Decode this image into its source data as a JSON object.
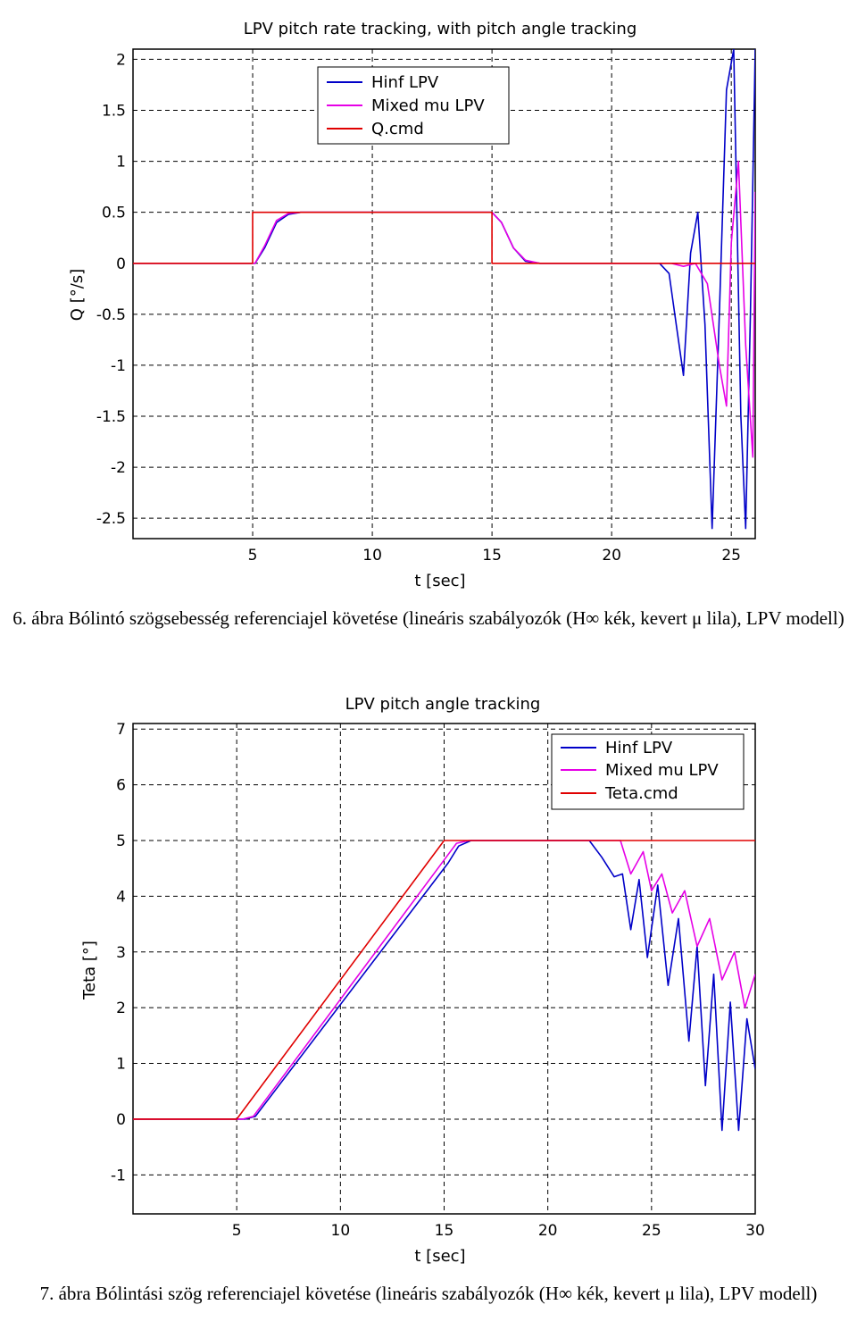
{
  "charts": [
    {
      "type": "line",
      "title": "LPV pitch rate tracking, with pitch angle tracking",
      "xlabel": "t [sec]",
      "ylabel": "Q [°/s]",
      "xlim": [
        0,
        26
      ],
      "ylim": [
        -2.7,
        2.1
      ],
      "xticks": [
        "5",
        "10",
        "15",
        "20",
        "25"
      ],
      "yticks": [
        "2",
        "1.5",
        "1",
        "0.5",
        "0",
        "-0.5",
        "-1",
        "-1.5",
        "-2",
        "-2.5"
      ],
      "grid": true,
      "legend": {
        "position": "top-left",
        "entries": [
          "Hinf LPV",
          "Mixed mu LPV",
          "Q.cmd"
        ]
      },
      "colors": {
        "hinf": "#0000c8",
        "mixed": "#e600e6",
        "cmd": "#e00000"
      },
      "series": [
        {
          "name": "Hinf LPV",
          "color": "#0000c8",
          "x": [
            0,
            5.1,
            5.5,
            6.0,
            6.5,
            7.0,
            15.0,
            15.4,
            15.9,
            16.4,
            17.0,
            20.0,
            22.0,
            22.4,
            22.7,
            23.0,
            23.3,
            23.6,
            23.9,
            24.2,
            24.5,
            24.8,
            25.1,
            25.4,
            25.6,
            25.8,
            26.0
          ],
          "y": [
            0,
            0,
            0.15,
            0.4,
            0.48,
            0.5,
            0.5,
            0.4,
            0.15,
            0.02,
            0,
            0,
            0,
            -0.1,
            -0.6,
            -1.1,
            0.1,
            0.5,
            -0.6,
            -2.6,
            -0.5,
            1.7,
            2.1,
            -1.5,
            -2.6,
            -0.5,
            2.1
          ]
        },
        {
          "name": "Mixed mu LPV",
          "color": "#e600e6",
          "x": [
            0,
            5.1,
            5.5,
            6.0,
            6.5,
            7.0,
            15.0,
            15.4,
            15.9,
            16.4,
            17.0,
            22.5,
            23.0,
            23.5,
            24.0,
            24.5,
            24.8,
            25.0,
            25.3,
            25.6,
            25.9,
            26.0
          ],
          "y": [
            0,
            0,
            0.17,
            0.42,
            0.49,
            0.5,
            0.5,
            0.4,
            0.15,
            0.03,
            0,
            0,
            -0.03,
            0.0,
            -0.2,
            -1.0,
            -1.4,
            0.2,
            1.0,
            -0.8,
            -1.9,
            0.7
          ]
        },
        {
          "name": "Q.cmd",
          "color": "#e00000",
          "x": [
            0,
            5,
            5,
            15,
            15,
            26
          ],
          "y": [
            0,
            0,
            0.5,
            0.5,
            0,
            0
          ]
        }
      ]
    },
    {
      "type": "line",
      "title": "LPV pitch angle tracking",
      "xlabel": "t [sec]",
      "ylabel": "Teta [°]",
      "xlim": [
        0,
        30
      ],
      "ylim": [
        -1.7,
        7.1
      ],
      "xticks": [
        "5",
        "10",
        "15",
        "20",
        "25",
        "30"
      ],
      "yticks": [
        "7",
        "6",
        "5",
        "4",
        "3",
        "2",
        "1",
        "0",
        "-1"
      ],
      "grid": true,
      "legend": {
        "position": "top-right",
        "entries": [
          "Hinf LPV",
          "Mixed mu LPV",
          "Teta.cmd"
        ]
      },
      "colors": {
        "hinf": "#0000c8",
        "mixed": "#e600e6",
        "cmd": "#e00000"
      },
      "series": [
        {
          "name": "Hinf LPV",
          "color": "#0000c8",
          "x": [
            0,
            5.4,
            5.9,
            15.2,
            15.7,
            16.3,
            22.0,
            22.6,
            23.2,
            23.6,
            24.0,
            24.4,
            24.8,
            25.3,
            25.8,
            26.3,
            26.8,
            27.2,
            27.6,
            28.0,
            28.4,
            28.8,
            29.2,
            29.6,
            30.0
          ],
          "y": [
            0,
            0,
            0.05,
            4.6,
            4.9,
            5.0,
            5.0,
            4.7,
            4.35,
            4.4,
            3.4,
            4.3,
            2.9,
            4.2,
            2.4,
            3.6,
            1.4,
            3.1,
            0.6,
            2.6,
            -0.2,
            2.1,
            -0.2,
            1.8,
            0.9
          ]
        },
        {
          "name": "Mixed mu LPV",
          "color": "#e600e6",
          "x": [
            0,
            5.3,
            5.8,
            15.1,
            15.6,
            16.2,
            23.5,
            24.0,
            24.6,
            25.0,
            25.5,
            26.0,
            26.6,
            27.2,
            27.8,
            28.4,
            29.0,
            29.5,
            30.0
          ],
          "y": [
            0,
            0,
            0.05,
            4.7,
            4.95,
            5.0,
            5.0,
            4.4,
            4.8,
            4.1,
            4.4,
            3.7,
            4.1,
            3.1,
            3.6,
            2.5,
            3.0,
            2.0,
            2.6
          ]
        },
        {
          "name": "Teta.cmd",
          "color": "#e00000",
          "x": [
            0,
            5,
            15,
            30
          ],
          "y": [
            0,
            0,
            5,
            5
          ]
        }
      ]
    }
  ],
  "captions": [
    "6. ábra Bólintó szögsebesség referenciajel követése (lineáris szabályozók (H∞ kék, kevert μ lila), LPV modell)",
    "7. ábra Bólintási szög referenciajel követése (lineáris szabályozók (H∞ kék, kevert μ lila), LPV modell)"
  ]
}
